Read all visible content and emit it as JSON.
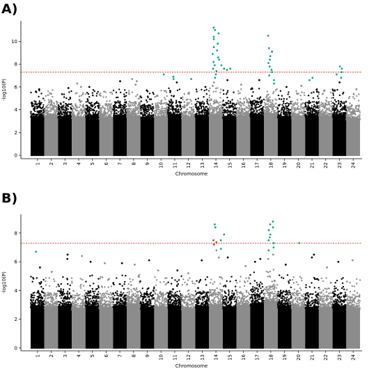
{
  "panels": [
    {
      "label": "A)",
      "chart_data": {
        "type": "scatter",
        "title": "",
        "xlabel": "Chromosome",
        "ylabel": "-log10(P)",
        "ylim": [
          -0.3,
          11.8
        ],
        "yticks": [
          0,
          2,
          4,
          6,
          8,
          10
        ],
        "threshold": 7.3,
        "chromosomes": [
          "1",
          "2",
          "3",
          "4",
          "5",
          "6",
          "7",
          "8",
          "9",
          "10",
          "11",
          "12",
          "13",
          "14",
          "15",
          "16",
          "17",
          "18",
          "19",
          "20",
          "21",
          "22",
          "23",
          "24"
        ],
        "chromosome_bulk_top": [
          4.2,
          4.3,
          4.2,
          4.1,
          4.3,
          4.1,
          4.3,
          4.3,
          4.1,
          4.2,
          4.4,
          4.1,
          4.3,
          4.4,
          4.2,
          4.3,
          4.4,
          4.5,
          4.2,
          4.2,
          4.3,
          4.2,
          4.3,
          4.0
        ],
        "peak_points": [
          {
            "chr": "1",
            "y": 5.8
          },
          {
            "chr": "1",
            "y": 5.6
          },
          {
            "chr": "2",
            "y": 5.4
          },
          {
            "chr": "3",
            "y": 5.9
          },
          {
            "chr": "4",
            "y": 6.3
          },
          {
            "chr": "4",
            "y": 6.0
          },
          {
            "chr": "5",
            "y": 6.0
          },
          {
            "chr": "6",
            "y": 5.6
          },
          {
            "chr": "7",
            "y": 6.5
          },
          {
            "chr": "8",
            "y": 6.7
          },
          {
            "chr": "8",
            "y": 6.5
          },
          {
            "chr": "8",
            "y": 6.2
          },
          {
            "chr": "9",
            "y": 5.7
          },
          {
            "chr": "10",
            "y": 7.1,
            "sig": true
          },
          {
            "chr": "11",
            "y": 6.9,
            "sig": true
          },
          {
            "chr": "11",
            "y": 6.7,
            "sig": true
          },
          {
            "chr": "11",
            "y": 6.4
          },
          {
            "chr": "12",
            "y": 6.7,
            "sig": true
          },
          {
            "chr": "13",
            "y": 6.0
          },
          {
            "chr": "14",
            "y": 11.2,
            "sig": true
          },
          {
            "chr": "14",
            "y": 11.0,
            "sig": true
          },
          {
            "chr": "14",
            "y": 10.7,
            "sig": true
          },
          {
            "chr": "14",
            "y": 10.4,
            "sig": true
          },
          {
            "chr": "14",
            "y": 10.2,
            "sig": true
          },
          {
            "chr": "14",
            "y": 9.8,
            "sig": true
          },
          {
            "chr": "14",
            "y": 9.5,
            "sig": true
          },
          {
            "chr": "14",
            "y": 9.2,
            "sig": true
          },
          {
            "chr": "14",
            "y": 8.9,
            "sig": true
          },
          {
            "chr": "14",
            "y": 8.6,
            "sig": true
          },
          {
            "chr": "14",
            "y": 8.4,
            "sig": true
          },
          {
            "chr": "14",
            "y": 8.2,
            "sig": true
          },
          {
            "chr": "14",
            "y": 7.9,
            "sig": true
          },
          {
            "chr": "14",
            "y": 7.6,
            "sig": true
          },
          {
            "chr": "14",
            "y": 7.4,
            "sig": true
          },
          {
            "chr": "14",
            "y": 7.1,
            "sig": true
          },
          {
            "chr": "14",
            "y": 6.8,
            "sig": true
          },
          {
            "chr": "14",
            "y": 6.4
          },
          {
            "chr": "14",
            "y": 6.1
          },
          {
            "chr": "14.5",
            "y": 7.9,
            "sig": true
          },
          {
            "chr": "14.5",
            "y": 7.6,
            "sig": true
          },
          {
            "chr": "14.7",
            "y": 7.5,
            "sig": true
          },
          {
            "chr": "15",
            "y": 7.6,
            "sig": true
          },
          {
            "chr": "15",
            "y": 6.6
          },
          {
            "chr": "16",
            "y": 6.2
          },
          {
            "chr": "17",
            "y": 6.6
          },
          {
            "chr": "18",
            "y": 10.5,
            "sig": true
          },
          {
            "chr": "18",
            "y": 9.4,
            "sig": true
          },
          {
            "chr": "18",
            "y": 9.1,
            "sig": true
          },
          {
            "chr": "18",
            "y": 8.7,
            "sig": true
          },
          {
            "chr": "18",
            "y": 8.4,
            "sig": true
          },
          {
            "chr": "18",
            "y": 8.1,
            "sig": true
          },
          {
            "chr": "18",
            "y": 7.8,
            "sig": true
          },
          {
            "chr": "18",
            "y": 7.5,
            "sig": true
          },
          {
            "chr": "18",
            "y": 7.3,
            "sig": true
          },
          {
            "chr": "18",
            "y": 7.0,
            "sig": true
          },
          {
            "chr": "18",
            "y": 6.6,
            "sig": true
          },
          {
            "chr": "18",
            "y": 6.3,
            "sig": true
          },
          {
            "chr": "19",
            "y": 6.0
          },
          {
            "chr": "20",
            "y": 6.1
          },
          {
            "chr": "21",
            "y": 6.8,
            "sig": true
          },
          {
            "chr": "21",
            "y": 6.6,
            "sig": true
          },
          {
            "chr": "22",
            "y": 5.7
          },
          {
            "chr": "23",
            "y": 7.8,
            "sig": true
          },
          {
            "chr": "23",
            "y": 7.6,
            "sig": true
          },
          {
            "chr": "23",
            "y": 7.3,
            "sig": true
          },
          {
            "chr": "23",
            "y": 7.1,
            "sig": true
          },
          {
            "chr": "23",
            "y": 6.8,
            "sig": true
          },
          {
            "chr": "23",
            "y": 6.4
          },
          {
            "chr": "24",
            "y": 5.8
          }
        ],
        "colors": {
          "odd": "#000000",
          "even": "#8c8c8c",
          "significant": "#00a884",
          "threshold": "#e8322a"
        }
      }
    },
    {
      "label": "B)",
      "chart_data": {
        "type": "scatter",
        "title": "",
        "xlabel": "Chromosome",
        "ylabel": "-log10(P)",
        "ylim": [
          -0.2,
          9.3
        ],
        "yticks": [
          0,
          2,
          4,
          6,
          8
        ],
        "threshold": 7.3,
        "chromosomes": [
          "1",
          "2",
          "3",
          "4",
          "5",
          "6",
          "7",
          "8",
          "9",
          "10",
          "11",
          "12",
          "13",
          "14",
          "15",
          "16",
          "17",
          "18",
          "19",
          "20",
          "21",
          "22",
          "23",
          "24"
        ],
        "chromosome_bulk_top": [
          3.6,
          3.5,
          3.6,
          3.4,
          3.6,
          3.5,
          3.6,
          3.8,
          3.5,
          3.5,
          3.6,
          3.4,
          3.6,
          3.7,
          3.5,
          3.6,
          3.8,
          4.0,
          3.6,
          3.5,
          3.5,
          3.5,
          3.6,
          3.4
        ],
        "peak_points": [
          {
            "chr": "1",
            "y": 6.7,
            "sig": true
          },
          {
            "chr": "1",
            "y": 5.6
          },
          {
            "chr": "2",
            "y": 5.3
          },
          {
            "chr": "3",
            "y": 6.5
          },
          {
            "chr": "3",
            "y": 6.2
          },
          {
            "chr": "4",
            "y": 6.4
          },
          {
            "chr": "5",
            "y": 6.0
          },
          {
            "chr": "6",
            "y": 5.9
          },
          {
            "chr": "7",
            "y": 5.9
          },
          {
            "chr": "8",
            "y": 5.8
          },
          {
            "chr": "9",
            "y": 6.1
          },
          {
            "chr": "10",
            "y": 5.4
          },
          {
            "chr": "11",
            "y": 5.4
          },
          {
            "chr": "12",
            "y": 5.2
          },
          {
            "chr": "13",
            "y": 6.1
          },
          {
            "chr": "14",
            "y": 8.6,
            "sig": true
          },
          {
            "chr": "14",
            "y": 8.4,
            "sig": true
          },
          {
            "chr": "14",
            "y": 7.5,
            "red": true
          },
          {
            "chr": "14",
            "y": 7.35,
            "red": true
          },
          {
            "chr": "14",
            "y": 7.2,
            "red": true
          },
          {
            "chr": "14",
            "y": 6.8
          },
          {
            "chr": "14",
            "y": 6.3
          },
          {
            "chr": "14.5",
            "y": 7.9,
            "sig": true
          },
          {
            "chr": "14.5",
            "y": 7.5,
            "sig": true
          },
          {
            "chr": "14.5",
            "y": 6.9,
            "sig": true
          },
          {
            "chr": "15",
            "y": 6.3
          },
          {
            "chr": "16",
            "y": 5.7
          },
          {
            "chr": "17",
            "y": 6.2
          },
          {
            "chr": "17",
            "y": 6.0
          },
          {
            "chr": "18",
            "y": 8.8,
            "sig": true
          },
          {
            "chr": "18",
            "y": 8.6,
            "sig": true
          },
          {
            "chr": "18",
            "y": 8.4,
            "sig": true
          },
          {
            "chr": "18",
            "y": 8.2,
            "sig": true
          },
          {
            "chr": "18",
            "y": 7.9,
            "sig": true
          },
          {
            "chr": "18",
            "y": 7.7,
            "sig": true
          },
          {
            "chr": "18",
            "y": 7.5,
            "sig": true
          },
          {
            "chr": "18",
            "y": 7.3,
            "sig": true
          },
          {
            "chr": "18",
            "y": 7.0,
            "sig": true
          },
          {
            "chr": "18",
            "y": 6.8,
            "sig": true
          },
          {
            "chr": "18",
            "y": 6.5
          },
          {
            "chr": "18",
            "y": 6.2
          },
          {
            "chr": "19",
            "y": 5.8
          },
          {
            "chr": "20",
            "y": 7.3,
            "sig": true
          },
          {
            "chr": "21",
            "y": 6.3
          },
          {
            "chr": "21",
            "y": 6.5
          },
          {
            "chr": "22",
            "y": 5.6
          },
          {
            "chr": "23",
            "y": 6.0
          },
          {
            "chr": "24",
            "y": 6.1
          }
        ],
        "colors": {
          "odd": "#000000",
          "even": "#8c8c8c",
          "significant": "#00a884",
          "red": "#e8322a",
          "threshold": "#e8322a"
        }
      }
    }
  ]
}
